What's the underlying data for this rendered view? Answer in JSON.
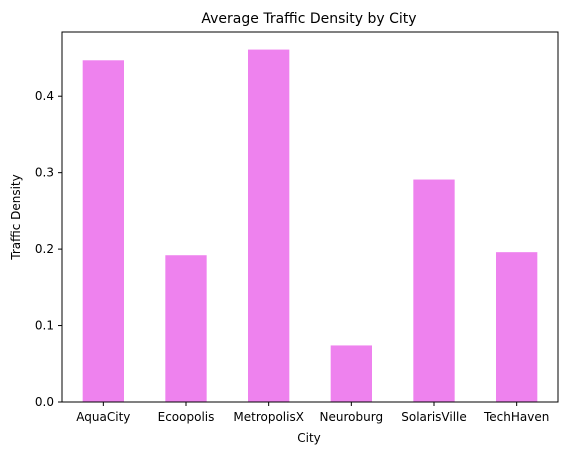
{
  "chart_data": {
    "type": "bar",
    "title": "Average Traffic Density by City",
    "xlabel": "City",
    "ylabel": "Traffic Density",
    "categories": [
      "AquaCity",
      "Ecoopolis",
      "MetropolisX",
      "Neuroburg",
      "SolarisVille",
      "TechHaven"
    ],
    "values": [
      0.447,
      0.192,
      0.461,
      0.074,
      0.291,
      0.196
    ],
    "yticks": [
      0.0,
      0.1,
      0.2,
      0.3,
      0.4
    ],
    "ytick_labels": [
      "0.0",
      "0.1",
      "0.2",
      "0.3",
      "0.4"
    ],
    "ylim": [
      0,
      0.484
    ],
    "bar_color": "#ee82ee",
    "grid": false,
    "legend": "none"
  }
}
